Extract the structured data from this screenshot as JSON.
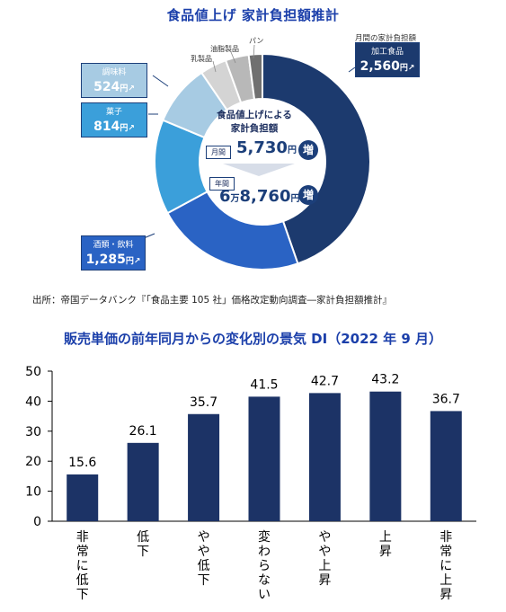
{
  "top_title": "食品値上げ 家計負担額推計",
  "donut": {
    "month_header": "月間の家計負担額",
    "center_title_line1": "食品値上げによる",
    "center_title_line2": "家計負担額",
    "monthly_tag": "月間",
    "monthly_value": "5,730",
    "monthly_unit": "円",
    "annual_tag": "年間",
    "annual_value_a": "6",
    "annual_value_unit1": "万",
    "annual_value_b": "8,760",
    "annual_unit": "円",
    "increase_badge": "増",
    "labels": {
      "kako": {
        "name": "加工食品",
        "value": "2,560",
        "unit": "円↗"
      },
      "shurui": {
        "name": "酒類・飲料",
        "value": "1,285",
        "unit": "円↗"
      },
      "kashi": {
        "name": "菓子",
        "value": "814",
        "unit": "円↗"
      },
      "chomi": {
        "name": "調味料",
        "value": "524",
        "unit": "円↗"
      },
      "nyu": {
        "name": "乳製品"
      },
      "yushi": {
        "name": "油脂製品"
      },
      "pan": {
        "name": "パン"
      }
    }
  },
  "source": "出所：帝国データバンク『「食品主要 105 社」価格改定動向調査―家計負担額推計』",
  "chart_data": [
    {
      "type": "pie",
      "title": "食品値上げ 家計負担額推計",
      "categories": [
        "加工食品",
        "酒類・飲料",
        "菓子",
        "調味料",
        "乳製品",
        "油脂製品",
        "パン"
      ],
      "values": [
        2560,
        1285,
        814,
        524,
        230,
        200,
        117
      ],
      "colors": [
        "#1c3a6e",
        "#2a63c4",
        "#3b9fda",
        "#a7cbe3",
        "#d4d4d4",
        "#b8b8b8",
        "#707070"
      ]
    },
    {
      "type": "bar",
      "title": "販売単価の前年同月からの変化別の景気 DI（2022 年 9 月）",
      "categories": [
        "非常に低下",
        "低下",
        "やや低下",
        "変わらない",
        "やや上昇",
        "上昇",
        "非常に上昇"
      ],
      "values": [
        15.6,
        26.1,
        35.7,
        41.5,
        42.7,
        43.2,
        36.7
      ],
      "ylim": [
        0,
        50
      ],
      "yticks": [
        0,
        10,
        20,
        30,
        40,
        50
      ],
      "bar_color": "#1c3366"
    }
  ]
}
